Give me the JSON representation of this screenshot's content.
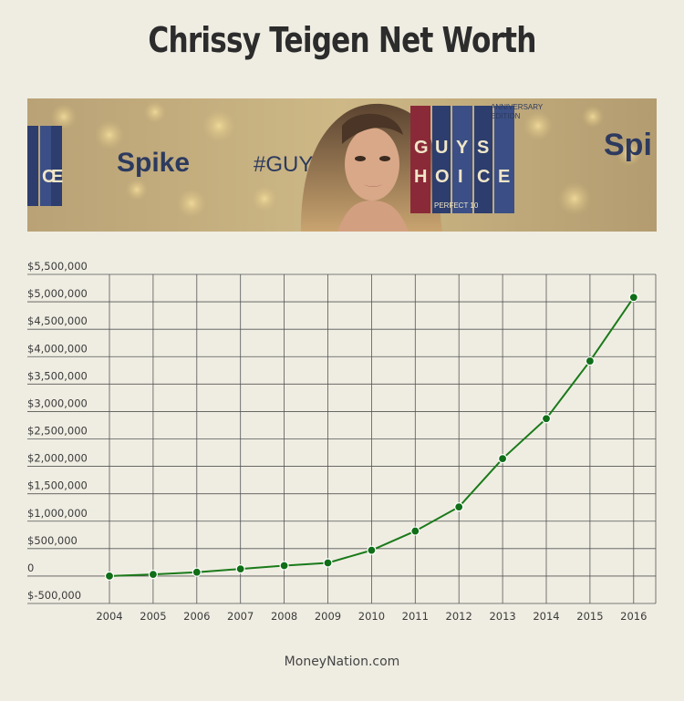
{
  "header": {
    "title": "Chrissy Teigen Net Worth"
  },
  "banner": {
    "logo_left": "Spike",
    "hashtag": "#GUYSCH",
    "logo_right": "Spi",
    "award_letters": [
      "G",
      "U",
      "Y",
      "S",
      "H",
      "O",
      "I",
      "C",
      "E"
    ],
    "anniversary": "ANNIVERSARY",
    "edition": "EDITION",
    "perfect": "PERFECT 10",
    "left_panel_letters": [
      "C",
      "E"
    ]
  },
  "chart_data": {
    "type": "line",
    "x": [
      "2004",
      "2005",
      "2006",
      "2007",
      "2008",
      "2009",
      "2010",
      "2011",
      "2012",
      "2013",
      "2014",
      "2015",
      "2016"
    ],
    "series": [
      {
        "values": [
          0,
          30000,
          70000,
          130000,
          190000,
          240000,
          470000,
          820000,
          1260000,
          2140000,
          2870000,
          3920000,
          5080000
        ],
        "color": "#1a7a1a"
      }
    ],
    "ylim": [
      -500000,
      5500000
    ],
    "y_ticks": [
      -500000,
      0,
      500000,
      1000000,
      1500000,
      2000000,
      2500000,
      3000000,
      3500000,
      4000000,
      4500000,
      5000000,
      5500000
    ],
    "y_tick_labels": [
      "$-500,000",
      "0",
      "$500,000",
      "$1,000,000",
      "$1,500,000",
      "$2,000,000",
      "$2,500,000",
      "$3,000,000",
      "$3,500,000",
      "$4,000,000",
      "$4,500,000",
      "$5,000,000",
      "$5,500,000"
    ],
    "grid": true,
    "xlabel": "",
    "ylabel": ""
  },
  "footer": {
    "source": "MoneyNation.com"
  }
}
